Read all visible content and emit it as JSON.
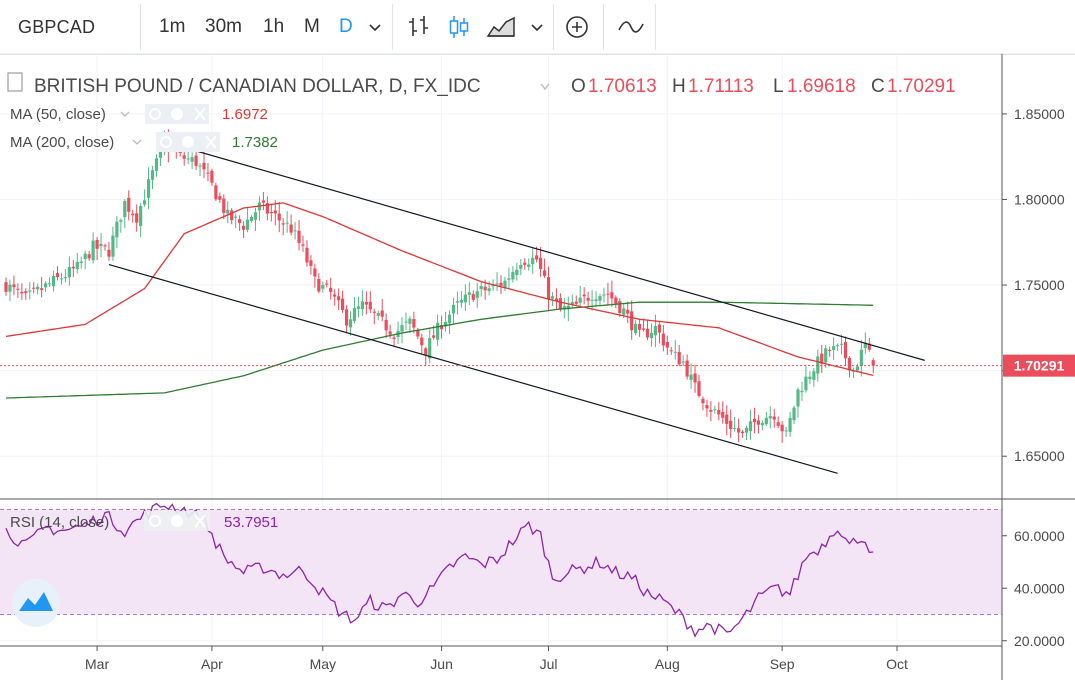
{
  "toolbar": {
    "symbol": "GBPCAD",
    "intervals": [
      "1m",
      "30m",
      "1h",
      "M",
      "D"
    ],
    "active_interval": "D",
    "icons": [
      "chevron-down-icon",
      "bar-style-icon",
      "candles-style-icon",
      "area-style-icon",
      "chevron-down-icon",
      "add-compare-icon",
      "indicators-icon"
    ]
  },
  "legend": {
    "title": "BRITISH POUND / CANADIAN DOLLAR, D, FX_IDC",
    "open_label": "O",
    "open": "1.70613",
    "high_label": "H",
    "high": "1.71113",
    "low_label": "L",
    "low": "1.69618",
    "close_label": "C",
    "close": "1.70291",
    "ma50_label": "MA (50, close)",
    "ma50_value": "1.6972",
    "ma200_label": "MA (200, close)",
    "ma200_value": "1.7382",
    "rsi_label": "RSI (14, close)",
    "rsi_value": "53.7951"
  },
  "colors": {
    "up": "#53b987",
    "down": "#eb4d5c",
    "ma50": "#e03535",
    "ma200": "#2e7d32",
    "rsi": "#8e24aa",
    "rsi_band": "#f3e5f5",
    "price_label_bg": "#eb4d5c",
    "grid": "#f0f3fa"
  },
  "chart_data": [
    {
      "type": "candlestick",
      "title": "BRITISH POUND / CANADIAN DOLLAR, D, FX_IDC",
      "x_ticks": [
        "Mar",
        "Apr",
        "May",
        "Jun",
        "Jul",
        "Aug",
        "Sep",
        "Oct"
      ],
      "y_ticks": [
        "1.65000",
        "1.70000",
        "1.75000",
        "1.80000",
        "1.85000"
      ],
      "ylim": [
        1.625,
        1.885
      ],
      "last_price_label": "1.70291",
      "close_anchors": [
        [
          0,
          1.75
        ],
        [
          5,
          1.742
        ],
        [
          12,
          1.752
        ],
        [
          18,
          1.76
        ],
        [
          22,
          1.772
        ],
        [
          26,
          1.77
        ],
        [
          30,
          1.798
        ],
        [
          33,
          1.79
        ],
        [
          37,
          1.815
        ],
        [
          40,
          1.833
        ],
        [
          44,
          1.825
        ],
        [
          48,
          1.822
        ],
        [
          52,
          1.808
        ],
        [
          56,
          1.79
        ],
        [
          60,
          1.785
        ],
        [
          64,
          1.796
        ],
        [
          68,
          1.79
        ],
        [
          72,
          1.783
        ],
        [
          75,
          1.77
        ],
        [
          78,
          1.752
        ],
        [
          82,
          1.745
        ],
        [
          86,
          1.73
        ],
        [
          90,
          1.738
        ],
        [
          94,
          1.73
        ],
        [
          98,
          1.722
        ],
        [
          102,
          1.728
        ],
        [
          106,
          1.712
        ],
        [
          110,
          1.728
        ],
        [
          114,
          1.738
        ],
        [
          118,
          1.745
        ],
        [
          122,
          1.748
        ],
        [
          126,
          1.752
        ],
        [
          130,
          1.765
        ],
        [
          134,
          1.765
        ],
        [
          137,
          1.745
        ],
        [
          140,
          1.735
        ],
        [
          144,
          1.738
        ],
        [
          148,
          1.745
        ],
        [
          152,
          1.745
        ],
        [
          156,
          1.735
        ],
        [
          160,
          1.72
        ],
        [
          164,
          1.725
        ],
        [
          168,
          1.71
        ],
        [
          171,
          1.705
        ],
        [
          174,
          1.69
        ],
        [
          178,
          1.678
        ],
        [
          182,
          1.67
        ],
        [
          186,
          1.662
        ],
        [
          190,
          1.672
        ],
        [
          194,
          1.675
        ],
        [
          197,
          1.662
        ],
        [
          200,
          1.688
        ],
        [
          204,
          1.702
        ],
        [
          208,
          1.712
        ],
        [
          211,
          1.712
        ],
        [
          214,
          1.7
        ],
        [
          217,
          1.715
        ],
        [
          219,
          1.7029
        ]
      ],
      "ma50": {
        "name": "MA (50, close)",
        "anchors": [
          [
            0,
            1.72
          ],
          [
            20,
            1.727
          ],
          [
            35,
            1.748
          ],
          [
            45,
            1.78
          ],
          [
            60,
            1.795
          ],
          [
            70,
            1.798
          ],
          [
            80,
            1.79
          ],
          [
            100,
            1.77
          ],
          [
            120,
            1.752
          ],
          [
            140,
            1.74
          ],
          [
            160,
            1.73
          ],
          [
            180,
            1.725
          ],
          [
            200,
            1.708
          ],
          [
            219,
            1.6972
          ]
        ]
      },
      "ma200": {
        "name": "MA (200, close)",
        "anchors": [
          [
            0,
            1.684
          ],
          [
            40,
            1.687
          ],
          [
            60,
            1.697
          ],
          [
            80,
            1.712
          ],
          [
            100,
            1.722
          ],
          [
            120,
            1.73
          ],
          [
            140,
            1.736
          ],
          [
            160,
            1.74
          ],
          [
            180,
            1.74
          ],
          [
            219,
            1.7382
          ]
        ]
      },
      "channel": {
        "upper": [
          [
            41,
            1.833
          ],
          [
            232,
            1.706
          ]
        ],
        "lower": [
          [
            26,
            1.762
          ],
          [
            210,
            1.64
          ]
        ]
      }
    },
    {
      "type": "line",
      "title": "RSI (14, close)",
      "y_ticks": [
        "20.0000",
        "40.0000",
        "60.0000"
      ],
      "ylim": [
        18,
        74
      ],
      "band": [
        30,
        70
      ],
      "anchors": [
        [
          0,
          62
        ],
        [
          5,
          56
        ],
        [
          10,
          63
        ],
        [
          15,
          62
        ],
        [
          20,
          64
        ],
        [
          25,
          68
        ],
        [
          30,
          62
        ],
        [
          35,
          68
        ],
        [
          40,
          72
        ],
        [
          45,
          70
        ],
        [
          50,
          66
        ],
        [
          55,
          52
        ],
        [
          60,
          46
        ],
        [
          65,
          48
        ],
        [
          70,
          45
        ],
        [
          75,
          47
        ],
        [
          80,
          38
        ],
        [
          85,
          30
        ],
        [
          88,
          28
        ],
        [
          92,
          35
        ],
        [
          96,
          32
        ],
        [
          100,
          38
        ],
        [
          104,
          35
        ],
        [
          108,
          40
        ],
        [
          112,
          48
        ],
        [
          116,
          52
        ],
        [
          120,
          49
        ],
        [
          124,
          51
        ],
        [
          128,
          58
        ],
        [
          132,
          64
        ],
        [
          135,
          60
        ],
        [
          138,
          44
        ],
        [
          142,
          46
        ],
        [
          146,
          48
        ],
        [
          150,
          50
        ],
        [
          154,
          46
        ],
        [
          158,
          44
        ],
        [
          162,
          38
        ],
        [
          166,
          35
        ],
        [
          170,
          30
        ],
        [
          174,
          24
        ],
        [
          178,
          26
        ],
        [
          182,
          22
        ],
        [
          186,
          28
        ],
        [
          190,
          36
        ],
        [
          194,
          40
        ],
        [
          198,
          38
        ],
        [
          202,
          52
        ],
        [
          206,
          56
        ],
        [
          210,
          64
        ],
        [
          213,
          56
        ],
        [
          216,
          60
        ],
        [
          219,
          53.8
        ]
      ]
    }
  ]
}
